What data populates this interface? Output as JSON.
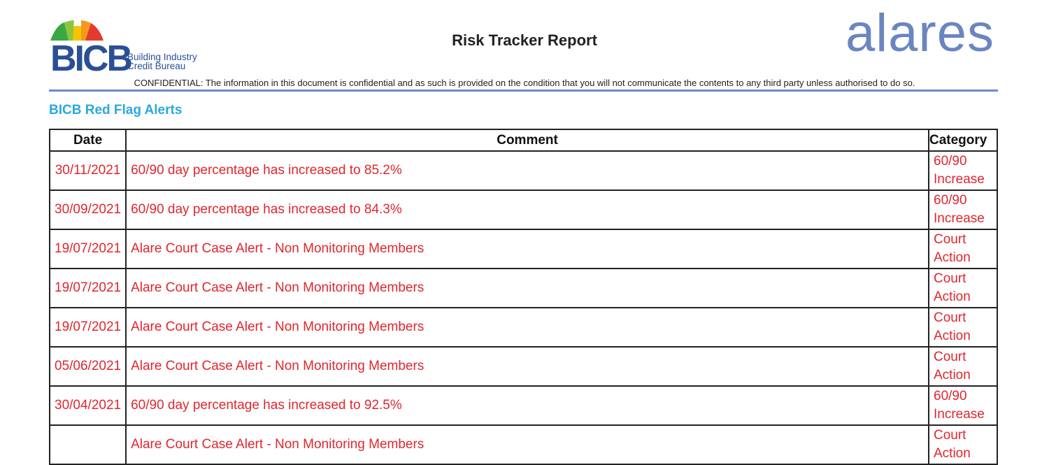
{
  "header": {
    "logo_left": {
      "mark": "BICB",
      "line1": "Building Industry",
      "line2": "Credit Bureau"
    },
    "title": "Risk Tracker Report",
    "logo_right": "alares",
    "confidential": "CONFIDENTIAL: The information in this document is confidential and as such is provided on the condition that you will not communicate the contents to any third party unless authorised to do so."
  },
  "section_title": "BICB Red Flag Alerts",
  "colors": {
    "alert_text": "#e0262e",
    "section_title": "#2aa8e0",
    "rule": "#6a8bd0"
  },
  "table": {
    "columns": [
      "Date",
      "Comment",
      "Category"
    ],
    "rows": [
      {
        "date": "30/11/2021",
        "comment": "60/90 day percentage has increased to 85.2%",
        "category": "60/90 Increase"
      },
      {
        "date": "30/09/2021",
        "comment": "60/90 day percentage has increased to 84.3%",
        "category": "60/90 Increase"
      },
      {
        "date": "19/07/2021",
        "comment": "Alare Court Case Alert - Non Monitoring Members",
        "category": "Court Action"
      },
      {
        "date": "19/07/2021",
        "comment": "Alare Court Case Alert - Non Monitoring Members",
        "category": "Court Action"
      },
      {
        "date": "19/07/2021",
        "comment": "Alare Court Case Alert - Non Monitoring Members",
        "category": "Court Action"
      },
      {
        "date": "05/06/2021",
        "comment": "Alare Court Case Alert - Non Monitoring Members",
        "category": "Court Action"
      },
      {
        "date": "30/04/2021",
        "comment": "60/90 day percentage has increased to 92.5%",
        "category": "60/90 Increase"
      },
      {
        "date": "",
        "comment": "Alare Court Case Alert - Non Monitoring Members",
        "category": "Court Action"
      }
    ]
  }
}
